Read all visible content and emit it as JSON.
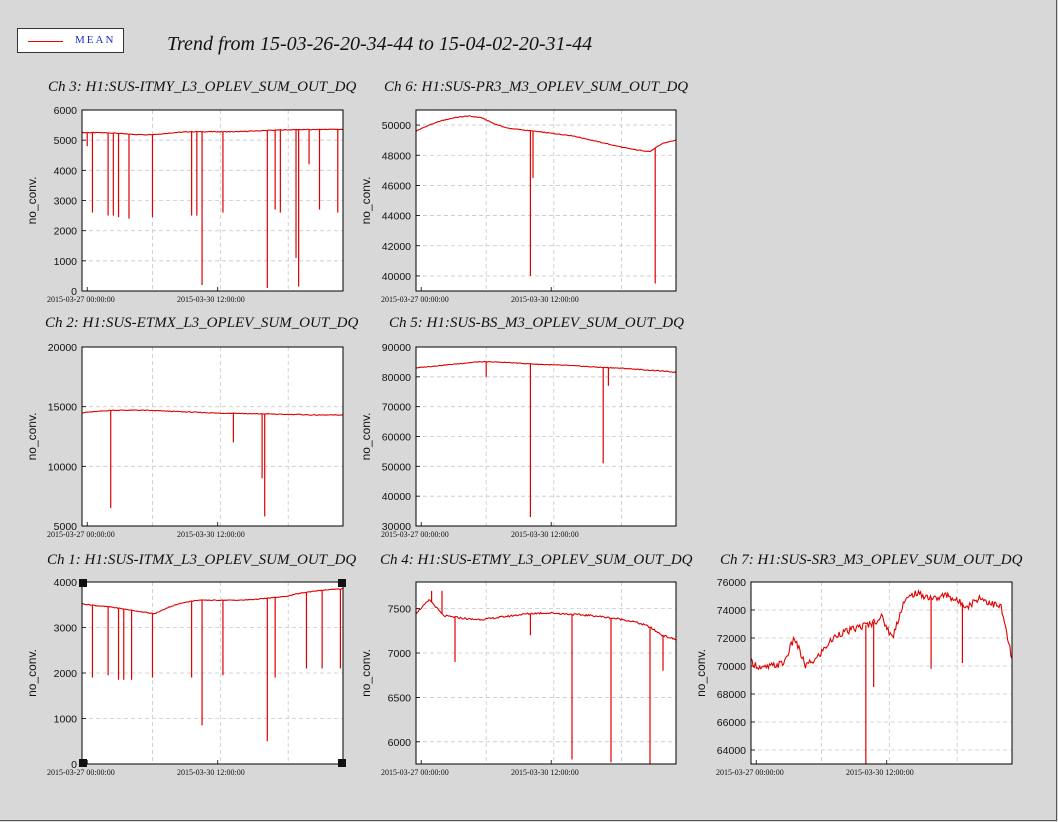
{
  "legend": {
    "label": "MEAN",
    "color": "#e00000"
  },
  "title": "Trend from 15-03-26-20-34-44 to 15-04-02-20-31-44",
  "colors": {
    "series": "#e00000",
    "grid": "#c8c8c8",
    "background": "#d8d8d8"
  },
  "chart_data": [
    {
      "type": "line",
      "title": "Ch 3: H1:SUS-ITMY_L3_OPLEV_SUM_OUT_DQ",
      "ylabel": "no_conv.",
      "xticks": [
        "2015-03-27 00:00:00",
        "2015-03-30 12:00:00"
      ],
      "yticks": [
        0,
        1000,
        2000,
        3000,
        4000,
        5000,
        6000
      ],
      "ylim": [
        0,
        6000
      ],
      "grid": true,
      "series": [
        {
          "values": [
            5250,
            5250,
            5240,
            5200,
            5180,
            5200,
            5250,
            5280,
            5280,
            5280,
            5280,
            5300,
            5320,
            5340,
            5350,
            5350,
            5360,
            5360
          ]
        }
      ],
      "dips": [
        [
          0.02,
          4800
        ],
        [
          0.04,
          2600
        ],
        [
          0.1,
          2500
        ],
        [
          0.12,
          2500
        ],
        [
          0.14,
          2450
        ],
        [
          0.18,
          2400
        ],
        [
          0.27,
          2450
        ],
        [
          0.42,
          2500
        ],
        [
          0.44,
          2500
        ],
        [
          0.46,
          200
        ],
        [
          0.54,
          2600
        ],
        [
          0.71,
          100
        ],
        [
          0.74,
          2700
        ],
        [
          0.76,
          2600
        ],
        [
          0.82,
          1100
        ],
        [
          0.83,
          150
        ],
        [
          0.87,
          4200
        ],
        [
          0.91,
          2700
        ],
        [
          0.98,
          2600
        ]
      ]
    },
    {
      "type": "line",
      "title": "Ch 6: H1:SUS-PR3_M3_OPLEV_SUM_OUT_DQ",
      "ylabel": "no_conv.",
      "xticks": [
        "2015-03-27 00:00:00",
        "2015-03-30 12:00:00"
      ],
      "yticks": [
        40000,
        42000,
        44000,
        46000,
        48000,
        50000
      ],
      "ylim": [
        39000,
        51000
      ],
      "grid": true,
      "series": [
        {
          "values": [
            49600,
            50000,
            50300,
            50500,
            50600,
            50500,
            50100,
            49800,
            49700,
            49600,
            49500,
            49400,
            49300,
            49100,
            48900,
            48700,
            48500,
            48350,
            48250,
            48800,
            49000
          ]
        }
      ],
      "dips": [
        [
          0.44,
          40000
        ],
        [
          0.45,
          46500
        ],
        [
          0.92,
          39500
        ]
      ]
    },
    {
      "type": "line",
      "title": "Ch 2: H1:SUS-ETMX_L3_OPLEV_SUM_OUT_DQ",
      "ylabel": "no_conv.",
      "xticks": [
        "2015-03-27 00:00:00",
        "2015-03-30 12:00:00"
      ],
      "yticks": [
        5000,
        10000,
        15000,
        20000
      ],
      "ylim": [
        5000,
        20000
      ],
      "grid": true,
      "series": [
        {
          "values": [
            14500,
            14600,
            14700,
            14700,
            14700,
            14650,
            14600,
            14550,
            14500,
            14450,
            14450,
            14400,
            14400,
            14350,
            14350,
            14300,
            14300,
            14300
          ]
        }
      ],
      "dips": [
        [
          0.11,
          6500
        ],
        [
          0.58,
          12000
        ],
        [
          0.69,
          9000
        ],
        [
          0.7,
          5800
        ]
      ]
    },
    {
      "type": "line",
      "title": "Ch 5: H1:SUS-BS_M3_OPLEV_SUM_OUT_DQ",
      "ylabel": "no_conv.",
      "xticks": [
        "2015-03-27 00:00:00",
        "2015-03-30 12:00:00"
      ],
      "yticks": [
        30000,
        40000,
        50000,
        60000,
        70000,
        80000,
        90000
      ],
      "ylim": [
        30000,
        90000
      ],
      "grid": true,
      "series": [
        {
          "values": [
            83000,
            83500,
            84000,
            84500,
            85000,
            85000,
            84800,
            84500,
            84200,
            84000,
            83800,
            83500,
            83200,
            83000,
            82700,
            82300,
            82000,
            81500
          ]
        }
      ],
      "dips": [
        [
          0.27,
          80000
        ],
        [
          0.44,
          33000
        ],
        [
          0.72,
          51000
        ],
        [
          0.74,
          77000
        ]
      ]
    },
    {
      "type": "line",
      "title": "Ch 1: H1:SUS-ITMX_L3_OPLEV_SUM_OUT_DQ",
      "ylabel": "no_conv.",
      "xticks": [
        "2015-03-27 00:00:00",
        "2015-03-30 12:00:00"
      ],
      "yticks": [
        0,
        1000,
        2000,
        3000,
        4000
      ],
      "ylim": [
        0,
        4000
      ],
      "grid": true,
      "series": [
        {
          "values": [
            3520,
            3480,
            3450,
            3400,
            3350,
            3300,
            3450,
            3550,
            3600,
            3600,
            3600,
            3600,
            3620,
            3650,
            3680,
            3750,
            3800,
            3830,
            3850
          ]
        }
      ],
      "dips": [
        [
          0.04,
          1900
        ],
        [
          0.1,
          1950
        ],
        [
          0.14,
          1850
        ],
        [
          0.16,
          1850
        ],
        [
          0.19,
          1850
        ],
        [
          0.27,
          1900
        ],
        [
          0.42,
          1900
        ],
        [
          0.46,
          850
        ],
        [
          0.54,
          1950
        ],
        [
          0.71,
          500
        ],
        [
          0.74,
          1900
        ],
        [
          0.86,
          2100
        ],
        [
          0.92,
          2100
        ],
        [
          0.99,
          2100
        ]
      ]
    },
    {
      "type": "line",
      "title": "Ch 4: H1:SUS-ETMY_L3_OPLEV_SUM_OUT_DQ",
      "ylabel": "no_conv.",
      "xticks": [
        "2015-03-27 00:00:00",
        "2015-03-30 12:00:00"
      ],
      "yticks": [
        6000,
        6500,
        7000,
        7500
      ],
      "ylim": [
        5750,
        7800
      ],
      "grid": true,
      "series": [
        {
          "values": [
            7450,
            7600,
            7420,
            7400,
            7380,
            7380,
            7400,
            7420,
            7440,
            7450,
            7450,
            7440,
            7430,
            7420,
            7400,
            7380,
            7350,
            7300,
            7200,
            7150
          ]
        }
      ],
      "dips": [
        [
          0.06,
          7700
        ],
        [
          0.1,
          7700
        ],
        [
          0.15,
          6900
        ],
        [
          0.44,
          7200
        ],
        [
          0.6,
          5800
        ],
        [
          0.75,
          5770
        ],
        [
          0.9,
          5700
        ],
        [
          0.95,
          6800
        ]
      ]
    },
    {
      "type": "line",
      "title": "Ch 7: H1:SUS-SR3_M3_OPLEV_SUM_OUT_DQ",
      "ylabel": "no_conv.",
      "xticks": [
        "2015-03-27 00:00:00",
        "2015-03-30 12:00:00"
      ],
      "yticks": [
        64000,
        66000,
        68000,
        70000,
        72000,
        74000,
        76000
      ],
      "ylim": [
        63000,
        76000
      ],
      "grid": true,
      "series": [
        {
          "values": [
            70300,
            69800,
            70000,
            70200,
            72000,
            70000,
            70500,
            71500,
            72300,
            72500,
            72800,
            73000,
            73500,
            72000,
            74500,
            75200,
            75000,
            74800,
            75100,
            74600,
            74300,
            74900,
            74500,
            74200,
            70500
          ]
        }
      ],
      "dips": [
        [
          0.44,
          63000
        ],
        [
          0.47,
          68500
        ],
        [
          0.69,
          69800
        ],
        [
          0.81,
          70200
        ]
      ]
    }
  ]
}
